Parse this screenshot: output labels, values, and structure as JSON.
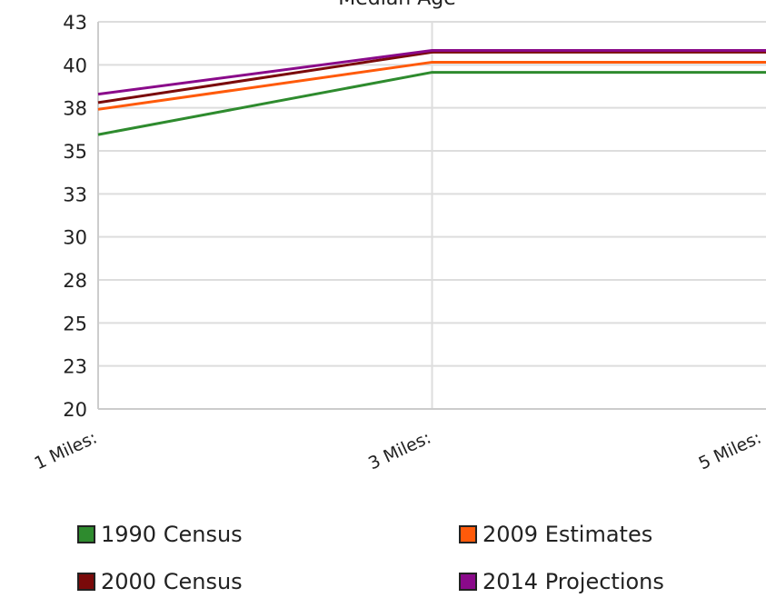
{
  "chart_data": {
    "type": "line",
    "title": "Median Age",
    "xlabel": "",
    "ylabel": "",
    "categories": [
      "1 Miles:",
      "3 Miles:",
      "5 Miles:"
    ],
    "ylim": [
      20,
      43
    ],
    "yticks": [
      "43",
      "40",
      "38",
      "35",
      "33",
      "30",
      "28",
      "25",
      "23",
      "20"
    ],
    "ytick_values": [
      43,
      40.444,
      37.889,
      35.333,
      32.778,
      30.222,
      27.667,
      25.111,
      22.556,
      20
    ],
    "grid": true,
    "legend_position": "bottom",
    "series": [
      {
        "name": "1990 Census",
        "color": "#2e8b2e",
        "values": [
          36.3,
          40.0,
          40.0
        ]
      },
      {
        "name": "2009 Estimates",
        "color": "#ff5a0a",
        "values": [
          37.8,
          40.6,
          40.6
        ]
      },
      {
        "name": "2000 Census",
        "color": "#7a0a0a",
        "values": [
          38.2,
          41.2,
          41.2
        ]
      },
      {
        "name": "2014 Projections",
        "color": "#8a0a8a",
        "values": [
          38.7,
          41.3,
          41.3
        ]
      }
    ]
  }
}
